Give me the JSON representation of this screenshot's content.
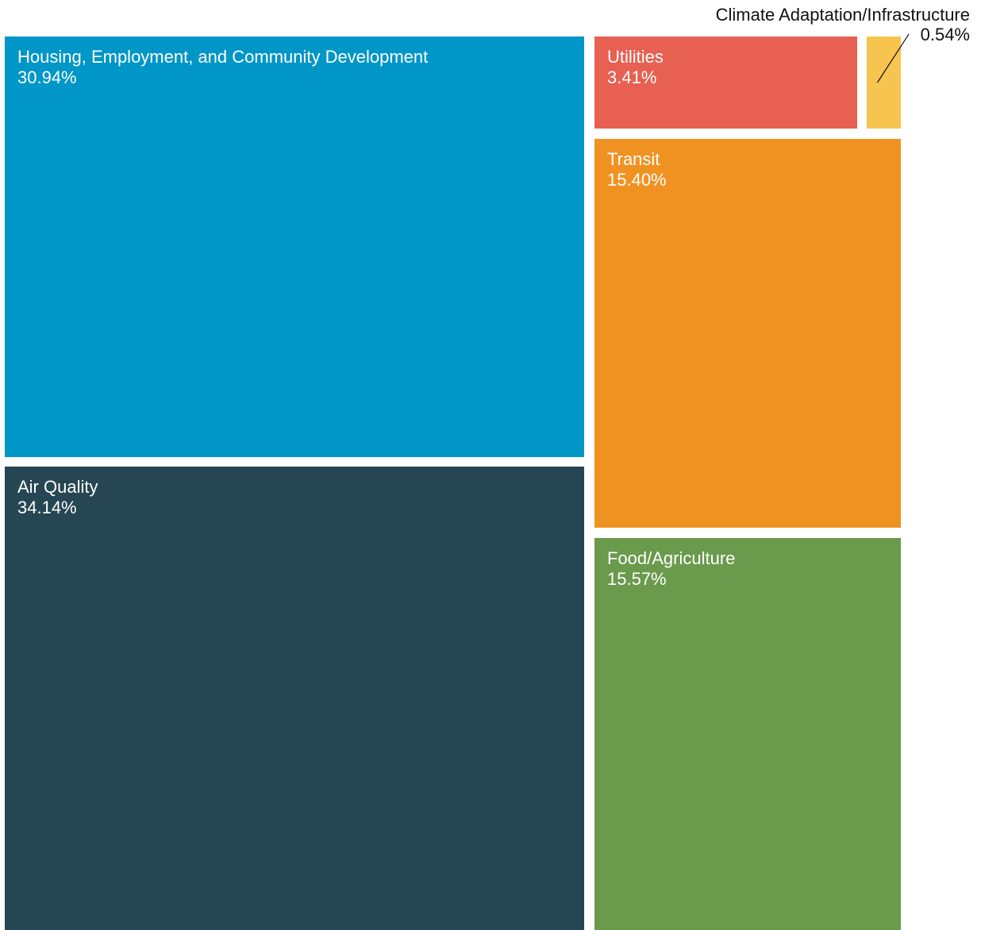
{
  "chart_data": {
    "type": "treemap",
    "unit": "%",
    "items": [
      {
        "name": "Housing, Employment, and Community Development",
        "value": 30.94,
        "value_label": "30.94%",
        "color": "#0096c7"
      },
      {
        "name": "Air Quality",
        "value": 34.14,
        "value_label": "34.14%",
        "color": "#264653"
      },
      {
        "name": "Utilities",
        "value": 3.41,
        "value_label": "3.41%",
        "color": "#e76052"
      },
      {
        "name": "Climate Adaptation/Infrastructure",
        "value": 0.54,
        "value_label": "0.54%",
        "color": "#f6c44f"
      },
      {
        "name": "Transit",
        "value": 15.4,
        "value_label": "15.40%",
        "color": "#f09222"
      },
      {
        "name": "Food/Agriculture",
        "value": 15.57,
        "value_label": "15.57%",
        "color": "#6a9a4c"
      }
    ]
  }
}
